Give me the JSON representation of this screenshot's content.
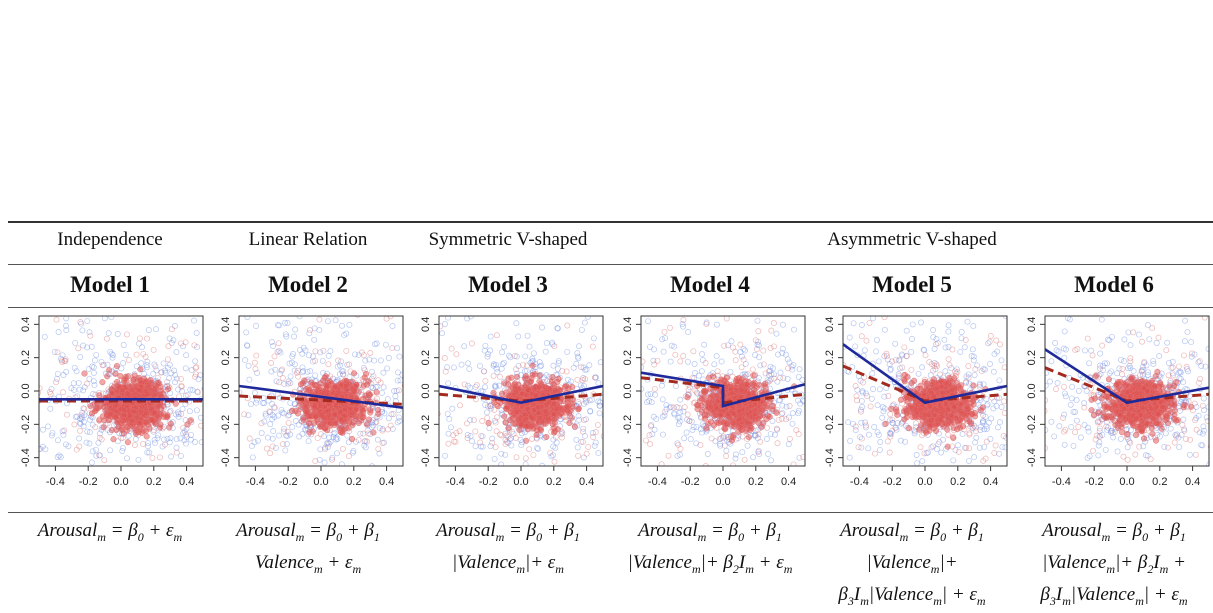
{
  "categories": [
    {
      "label": "Independence",
      "models": [
        1
      ]
    },
    {
      "label": "Linear Relation",
      "models": [
        2
      ]
    },
    {
      "label": "Symmetric V-shaped",
      "models": [
        3
      ]
    },
    {
      "label": "Asymmetric V-shaped",
      "models": [
        4,
        5,
        6
      ]
    }
  ],
  "models": [
    {
      "title": "Model 1",
      "formula": [
        [
          "Arousal",
          "m",
          " = ",
          "β",
          "0",
          " + ",
          "ε",
          "m"
        ]
      ]
    },
    {
      "title": "Model 2",
      "formula": [
        [
          "Arousal",
          "m",
          " = ",
          "β",
          "0",
          " + ",
          "β",
          "1"
        ],
        [
          "Valence",
          "m",
          " + ",
          "ε",
          "m"
        ]
      ]
    },
    {
      "title": "Model 3",
      "formula": [
        [
          "Arousal",
          "m",
          " = ",
          "β",
          "0",
          " + ",
          "β",
          "1"
        ],
        [
          "|Valence",
          "m",
          "|+ ",
          "ε",
          "m"
        ]
      ]
    },
    {
      "title": "Model 4",
      "formula": [
        [
          "Arousal",
          "m",
          " = ",
          "β",
          "0",
          " + ",
          "β",
          "1"
        ],
        [
          "|Valence",
          "m",
          "|+ ",
          "β",
          "2",
          "I",
          "m",
          " + ",
          "ε",
          "m"
        ]
      ]
    },
    {
      "title": "Model 5",
      "formula": [
        [
          "Arousal",
          "m",
          " = ",
          "β",
          "0",
          " + ",
          "β",
          "1"
        ],
        [
          "|Valence",
          "m",
          "|+"
        ],
        [
          "β",
          "3",
          "I",
          "m",
          "|Valence",
          "m",
          "| + ",
          "ε",
          "m"
        ]
      ]
    },
    {
      "title": "Model 6",
      "formula": [
        [
          "Arousal",
          "m",
          " = ",
          "β",
          "0",
          " + ",
          "β",
          "1"
        ],
        [
          "|Valence",
          "m",
          "|+ ",
          "β",
          "2",
          "I",
          "m",
          " +"
        ],
        [
          "β",
          "3",
          "I",
          "m",
          "|Valence",
          "m",
          "| + ",
          "ε",
          "m"
        ]
      ]
    }
  ],
  "chart_data": {
    "type": "scatter",
    "xlim": [
      -0.5,
      0.5
    ],
    "ylim": [
      -0.45,
      0.45
    ],
    "x_ticks": [
      "-0.4",
      "-0.2",
      "0.0",
      "0.2",
      "0.4"
    ],
    "y_ticks": [
      "-0.4",
      "-0.2",
      "0.0",
      "0.2",
      "0.4"
    ],
    "colors": {
      "points_blue": "#6f8fe6",
      "points_red": "#e07070",
      "core": "#e05050",
      "fit_solid": "#1f2a9a",
      "fit_dashed": "#a52a1e"
    },
    "cloud": {
      "center_x": 0.08,
      "center_y": -0.08,
      "sd_x": 0.16,
      "sd_y": 0.1
    },
    "fits": [
      {
        "model": 1,
        "solid": [
          [
            -0.5,
            -0.05
          ],
          [
            0.5,
            -0.05
          ]
        ],
        "dashed": [
          [
            -0.5,
            -0.06
          ],
          [
            0.5,
            -0.06
          ]
        ]
      },
      {
        "model": 2,
        "solid": [
          [
            -0.5,
            0.03
          ],
          [
            0.5,
            -0.1
          ]
        ],
        "dashed": [
          [
            -0.5,
            -0.03
          ],
          [
            0.5,
            -0.08
          ]
        ]
      },
      {
        "model": 3,
        "solid": [
          [
            -0.5,
            0.03
          ],
          [
            0.0,
            -0.07
          ],
          [
            0.5,
            0.03
          ]
        ],
        "dashed": [
          [
            -0.5,
            -0.02
          ],
          [
            0.0,
            -0.06
          ],
          [
            0.5,
            -0.02
          ]
        ]
      },
      {
        "model": 4,
        "solid": [
          [
            -0.5,
            0.11
          ],
          [
            0.0,
            0.03
          ],
          [
            0.0,
            -0.09
          ],
          [
            0.5,
            0.04
          ]
        ],
        "dashed": [
          [
            -0.5,
            0.08
          ],
          [
            0.0,
            0.02
          ],
          [
            0.0,
            -0.07
          ],
          [
            0.5,
            -0.02
          ]
        ]
      },
      {
        "model": 5,
        "solid": [
          [
            -0.5,
            0.28
          ],
          [
            0.0,
            -0.07
          ],
          [
            0.5,
            0.03
          ]
        ],
        "dashed": [
          [
            -0.5,
            0.15
          ],
          [
            0.0,
            -0.06
          ],
          [
            0.5,
            -0.02
          ]
        ]
      },
      {
        "model": 6,
        "solid": [
          [
            -0.5,
            0.25
          ],
          [
            0.0,
            -0.07
          ],
          [
            0.5,
            0.02
          ]
        ],
        "dashed": [
          [
            -0.5,
            0.14
          ],
          [
            0.0,
            -0.06
          ],
          [
            0.5,
            -0.02
          ]
        ]
      }
    ]
  }
}
